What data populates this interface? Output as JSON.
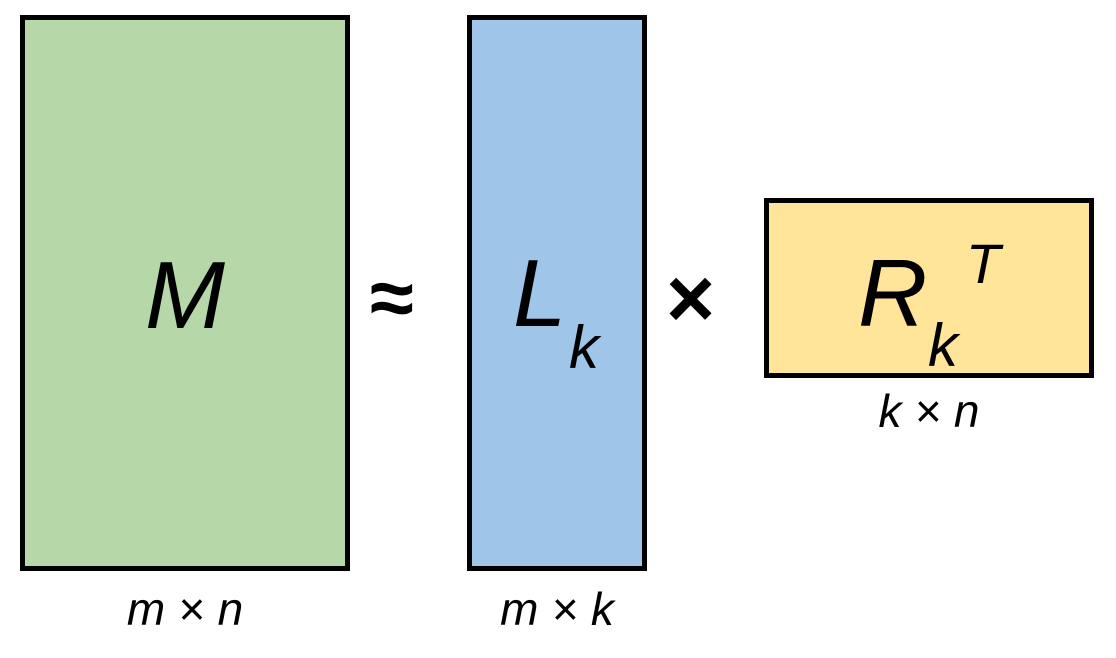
{
  "matrices": {
    "m": {
      "symbol": "M",
      "dimensions": "m × n",
      "color": "#b6d7a8"
    },
    "l": {
      "symbol": "L",
      "subscript": "k",
      "dimensions": "m × k",
      "color": "#9fc5e8"
    },
    "r": {
      "symbol": "R",
      "subscript": "k",
      "superscript": "T",
      "dimensions": "k × n",
      "color": "#ffe599"
    }
  },
  "operators": {
    "approx": "≈",
    "times": "×"
  }
}
